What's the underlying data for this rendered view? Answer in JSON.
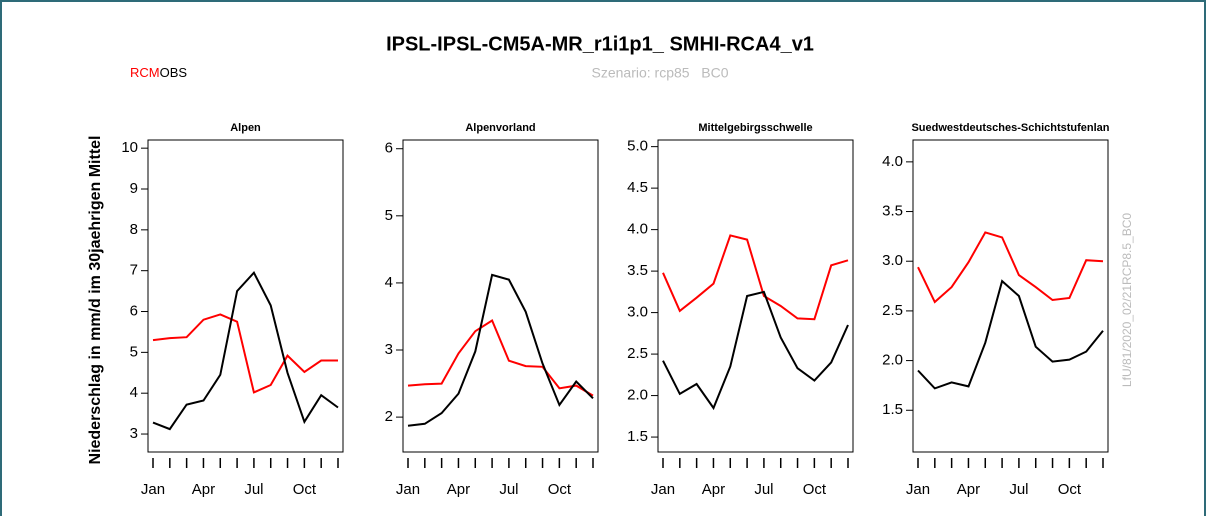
{
  "header": {
    "title": "IPSL-IPSL-CM5A-MR_r1i1p1_ SMHI-RCA4_v1",
    "subtitle": "Szenario: rcp85   BC0",
    "ylabel": "Niederschlag in mm/d im 30jaehrigen Mittel",
    "watermark": "LfU/81/2020_02/21RCP8.5_BC0"
  },
  "chart_data": [
    {
      "type": "line",
      "title": "Alpen",
      "categories": [
        "Jan",
        null,
        null,
        "Apr",
        null,
        null,
        "Jul",
        null,
        null,
        "Oct",
        null,
        null
      ],
      "series": [
        {
          "name": "RCM",
          "color": "#ff0000",
          "values": [
            5.3,
            5.35,
            5.37,
            5.8,
            5.93,
            5.75,
            4.02,
            4.2,
            4.92,
            4.52,
            4.8,
            4.8
          ]
        },
        {
          "name": "OBS",
          "color": "#000000",
          "values": [
            3.28,
            3.12,
            3.72,
            3.82,
            4.45,
            6.5,
            6.95,
            6.15,
            4.5,
            3.3,
            3.95,
            3.65
          ]
        }
      ],
      "ylim": [
        2.56,
        10.2
      ],
      "yticks": [
        3,
        4,
        5,
        6,
        7,
        8,
        9,
        10
      ]
    },
    {
      "type": "line",
      "title": "Alpenvorland",
      "categories": [
        "Jan",
        null,
        null,
        "Apr",
        null,
        null,
        "Jul",
        null,
        null,
        "Oct",
        null,
        null
      ],
      "series": [
        {
          "color": "#ff0000",
          "values": [
            2.47,
            2.49,
            2.5,
            2.95,
            3.28,
            3.44,
            2.84,
            2.76,
            2.75,
            2.43,
            2.47,
            2.32
          ]
        },
        {
          "color": "#000000",
          "values": [
            1.87,
            1.9,
            2.06,
            2.35,
            2.98,
            4.12,
            4.05,
            3.57,
            2.8,
            2.18,
            2.53,
            2.28
          ]
        }
      ],
      "ylim": [
        1.48,
        6.13
      ],
      "yticks": [
        2,
        3,
        4,
        5,
        6
      ]
    },
    {
      "type": "line",
      "title": "Mittelgebirgsschwelle",
      "categories": [
        "Jan",
        null,
        null,
        "Apr",
        null,
        null,
        "Jul",
        null,
        null,
        "Oct",
        null,
        null
      ],
      "series": [
        {
          "color": "#ff0000",
          "values": [
            3.48,
            3.02,
            3.18,
            3.35,
            3.93,
            3.88,
            3.2,
            3.08,
            2.93,
            2.92,
            3.57,
            3.63
          ]
        },
        {
          "color": "#000000",
          "values": [
            2.42,
            2.02,
            2.14,
            1.85,
            2.35,
            3.2,
            3.25,
            2.7,
            2.33,
            2.18,
            2.4,
            2.85
          ]
        }
      ],
      "ylim": [
        1.32,
        5.08
      ],
      "yticks": [
        1.5,
        {
          "value": 2,
          "label": "2.0"
        },
        2.5,
        {
          "value": 3,
          "label": "3.0"
        },
        3.5,
        {
          "value": 4,
          "label": "4.0"
        },
        4.5,
        {
          "value": 5,
          "label": "5.0"
        }
      ]
    },
    {
      "type": "line",
      "title": "Suedwestdeutsches-Schichtstufenlan",
      "categories": [
        "Jan",
        null,
        null,
        "Apr",
        null,
        null,
        "Jul",
        null,
        null,
        "Oct",
        null,
        null
      ],
      "series": [
        {
          "color": "#ff0000",
          "values": [
            2.94,
            2.59,
            2.74,
            2.99,
            3.29,
            3.24,
            2.86,
            2.74,
            2.61,
            2.63,
            3.01,
            3.0
          ]
        },
        {
          "color": "#000000",
          "values": [
            1.9,
            1.72,
            1.78,
            1.74,
            2.18,
            2.8,
            2.65,
            2.14,
            1.99,
            2.01,
            2.09,
            2.3
          ]
        }
      ],
      "ylim": [
        1.08,
        4.22
      ],
      "yticks": [
        1.5,
        {
          "value": 2,
          "label": "2.0"
        },
        2.5,
        {
          "value": 3,
          "label": "3.0"
        },
        3.5,
        {
          "value": 4,
          "label": "4.0"
        }
      ]
    }
  ]
}
